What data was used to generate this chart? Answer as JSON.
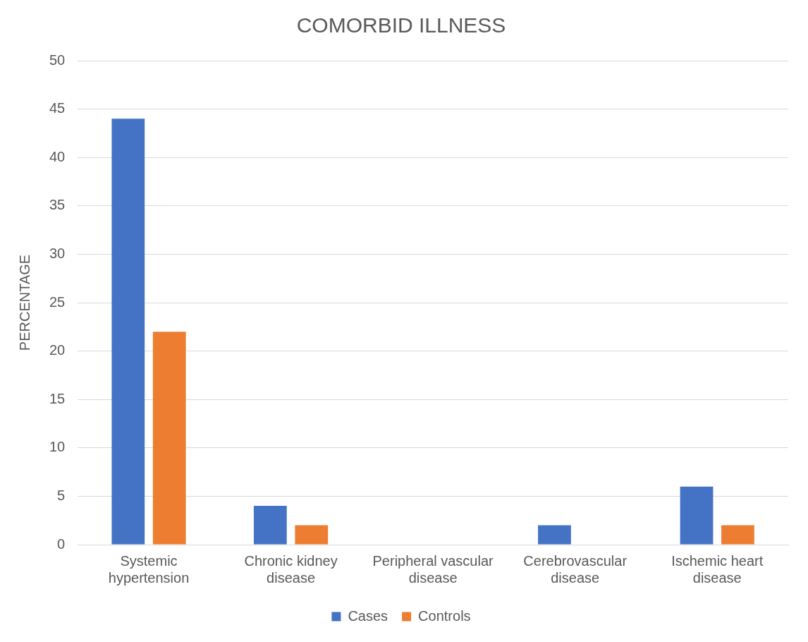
{
  "chart_data": {
    "type": "bar",
    "title": "COMORBID ILLNESS",
    "ylabel": "PERCENTAGE",
    "categories": [
      "Systemic hypertension",
      "Chronic kidney disease",
      "Peripheral vascular disease",
      "Cerebrovascular disease",
      "Ischemic heart disease"
    ],
    "series": [
      {
        "name": "Cases",
        "color": "#4472c4",
        "values": [
          44,
          4,
          0,
          2,
          6
        ]
      },
      {
        "name": "Controls",
        "color": "#ed7d31",
        "values": [
          22,
          2,
          0,
          0,
          2
        ]
      }
    ],
    "ylim": [
      0,
      50
    ],
    "yticks": [
      0,
      5,
      10,
      15,
      20,
      25,
      30,
      35,
      40,
      45,
      50
    ],
    "grid": "y",
    "legend": "bottom"
  }
}
